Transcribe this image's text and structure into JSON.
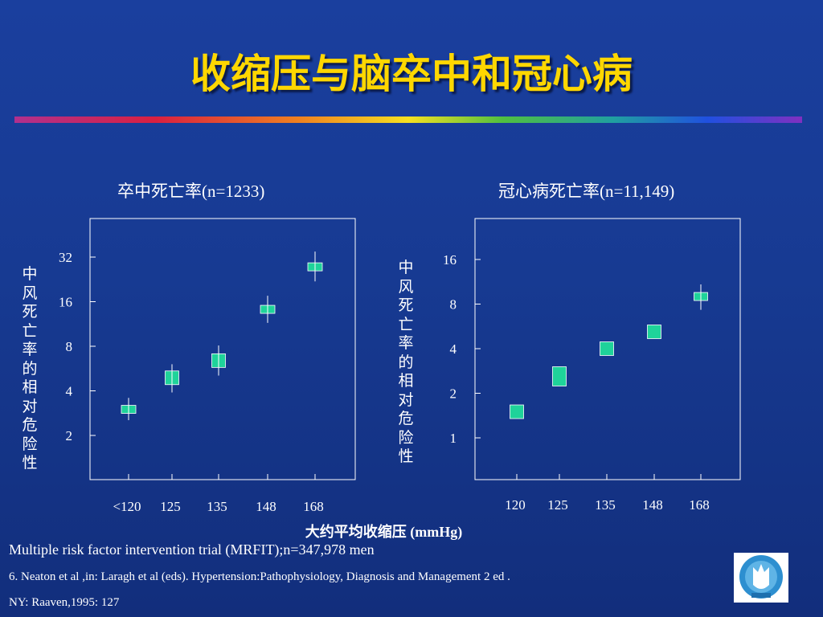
{
  "title": "收缩压与脑卒中和冠心病",
  "x_axis_title": "大约平均收缩压 (mmHg)",
  "footnotes": [
    "Multiple risk factor intervention trial (MRFIT);n=347,978 men",
    "6. Neaton et al ,in: Laragh et al (eds). Hypertension:Pathophysiology, Diagnosis and Management 2 ed .",
    "NY: Raaven,1995: 127"
  ],
  "logo_icon": "hospital-logo-icon",
  "colors": {
    "background": "#1a3f9e",
    "title": "#ffd700",
    "marker": "#1fd39a"
  },
  "chart_data": [
    {
      "type": "scatter",
      "title": "卒中死亡率(n=1233)",
      "ylabel": "中风死亡率的相对危险性",
      "xlabel": "",
      "y_scale": "log2",
      "categories": [
        "<120",
        "125",
        "135",
        "148",
        "168"
      ],
      "y_ticks": [
        2,
        4,
        8,
        16,
        32
      ],
      "values": [
        3.0,
        4.9,
        6.4,
        14.2,
        27.5
      ],
      "error_bars": [
        [
          2.6,
          3.5
        ],
        [
          4.0,
          5.9
        ],
        [
          5.2,
          7.9
        ],
        [
          11.8,
          17.1
        ],
        [
          22.5,
          34.0
        ]
      ]
    },
    {
      "type": "scatter",
      "title": "冠心病死亡率(n=11,149)",
      "ylabel": "中风死亡率的相对危险性",
      "xlabel": "",
      "y_scale": "log2",
      "categories": [
        "120",
        "125",
        "135",
        "148",
        "168"
      ],
      "y_ticks": [
        1,
        2,
        4,
        8,
        16
      ],
      "values": [
        1.5,
        2.6,
        4.0,
        5.2,
        9.0
      ],
      "error_bars": [
        [
          1.5,
          1.5
        ],
        [
          2.4,
          2.9
        ],
        [
          4.0,
          4.0
        ],
        [
          5.2,
          5.2
        ],
        [
          7.5,
          10.6
        ]
      ]
    }
  ]
}
